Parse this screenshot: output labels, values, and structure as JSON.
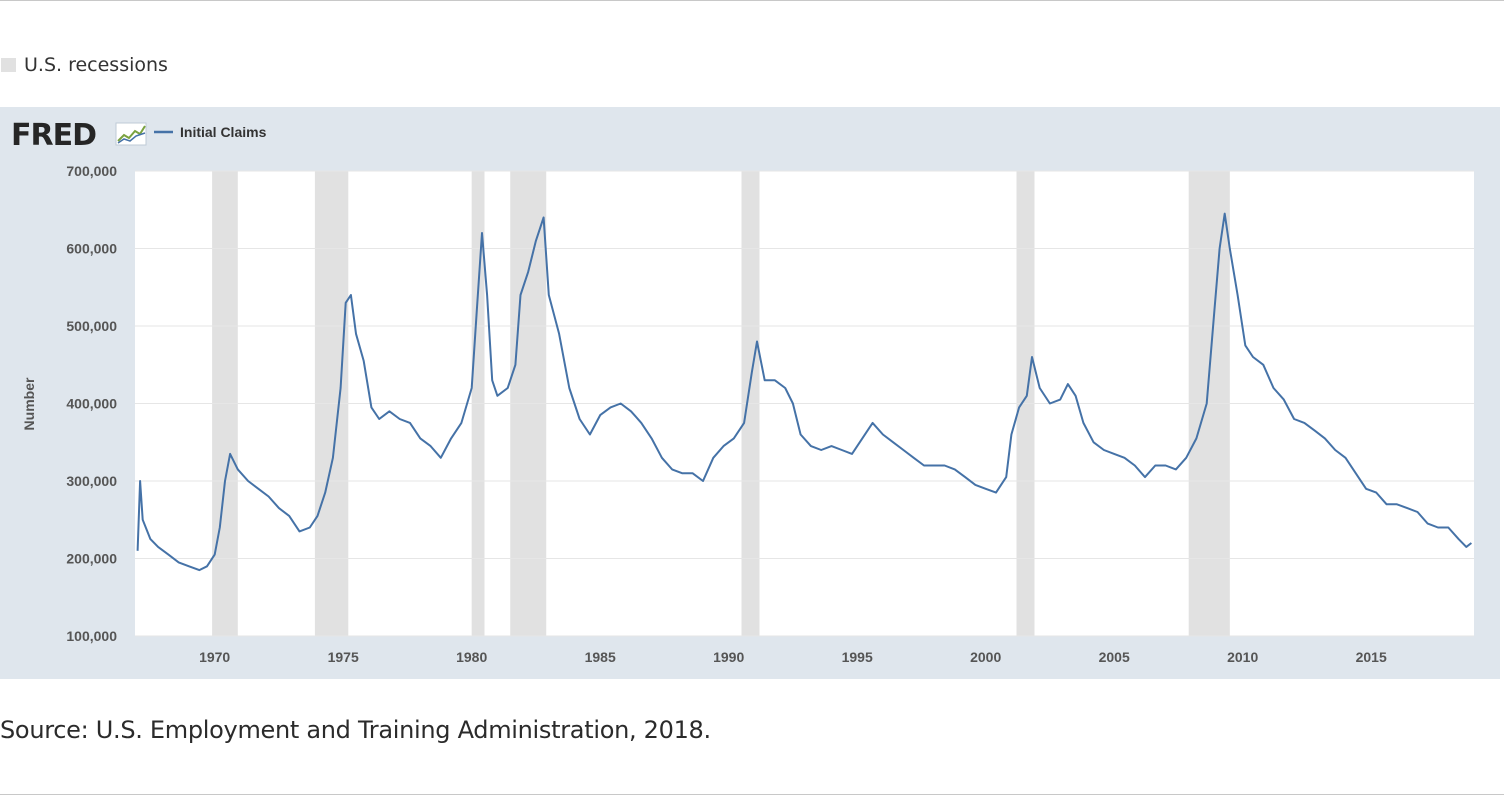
{
  "legend": {
    "label": "U.S. recessions"
  },
  "source_note": "Source: U.S. Employment and Training Administration, 2018.",
  "fred": {
    "logo_text": "FRED",
    "series_label": "Initial Claims"
  },
  "colors": {
    "panel": "#dfe6ed",
    "line": "#4572a7",
    "recession": "#e1e1e1",
    "grid": "#e6e6e6",
    "axis_text": "#555555"
  },
  "chart_data": {
    "type": "line",
    "title": "",
    "xlabel": "",
    "ylabel": "Number",
    "xlim": [
      1966.9,
      2019.0
    ],
    "ylim": [
      100000,
      700000
    ],
    "yticks": [
      100000,
      200000,
      300000,
      400000,
      500000,
      600000,
      700000
    ],
    "ytick_labels": [
      "100,000",
      "200,000",
      "300,000",
      "400,000",
      "500,000",
      "600,000",
      "700,000"
    ],
    "xticks": [
      1970,
      1975,
      1980,
      1985,
      1990,
      1995,
      2000,
      2005,
      2010,
      2015
    ],
    "xtick_labels": [
      "1970",
      "1975",
      "1980",
      "1985",
      "1990",
      "1995",
      "2000",
      "2005",
      "2010",
      "2015"
    ],
    "grid": true,
    "recessions": [
      [
        1969.9,
        1970.9
      ],
      [
        1973.9,
        1975.2
      ],
      [
        1980.0,
        1980.5
      ],
      [
        1981.5,
        1982.9
      ],
      [
        1990.5,
        1991.2
      ],
      [
        2001.2,
        2001.9
      ],
      [
        2007.9,
        2009.5
      ]
    ],
    "series": [
      {
        "name": "Initial Claims",
        "points": [
          [
            1967.0,
            210000
          ],
          [
            1967.1,
            300000
          ],
          [
            1967.2,
            250000
          ],
          [
            1967.5,
            225000
          ],
          [
            1967.8,
            215000
          ],
          [
            1968.2,
            205000
          ],
          [
            1968.6,
            195000
          ],
          [
            1969.0,
            190000
          ],
          [
            1969.4,
            185000
          ],
          [
            1969.7,
            190000
          ],
          [
            1970.0,
            205000
          ],
          [
            1970.2,
            240000
          ],
          [
            1970.4,
            300000
          ],
          [
            1970.6,
            335000
          ],
          [
            1970.9,
            315000
          ],
          [
            1971.3,
            300000
          ],
          [
            1971.7,
            290000
          ],
          [
            1972.1,
            280000
          ],
          [
            1972.5,
            265000
          ],
          [
            1972.9,
            255000
          ],
          [
            1973.3,
            235000
          ],
          [
            1973.7,
            240000
          ],
          [
            1974.0,
            255000
          ],
          [
            1974.3,
            285000
          ],
          [
            1974.6,
            330000
          ],
          [
            1974.9,
            420000
          ],
          [
            1975.1,
            530000
          ],
          [
            1975.3,
            540000
          ],
          [
            1975.5,
            490000
          ],
          [
            1975.8,
            455000
          ],
          [
            1976.1,
            395000
          ],
          [
            1976.4,
            380000
          ],
          [
            1976.8,
            390000
          ],
          [
            1977.2,
            380000
          ],
          [
            1977.6,
            375000
          ],
          [
            1978.0,
            355000
          ],
          [
            1978.4,
            345000
          ],
          [
            1978.8,
            330000
          ],
          [
            1979.2,
            355000
          ],
          [
            1979.6,
            375000
          ],
          [
            1980.0,
            420000
          ],
          [
            1980.2,
            520000
          ],
          [
            1980.4,
            620000
          ],
          [
            1980.6,
            540000
          ],
          [
            1980.8,
            430000
          ],
          [
            1981.0,
            410000
          ],
          [
            1981.4,
            420000
          ],
          [
            1981.7,
            450000
          ],
          [
            1981.9,
            540000
          ],
          [
            1982.2,
            570000
          ],
          [
            1982.5,
            610000
          ],
          [
            1982.8,
            640000
          ],
          [
            1983.0,
            540000
          ],
          [
            1983.4,
            490000
          ],
          [
            1983.8,
            420000
          ],
          [
            1984.2,
            380000
          ],
          [
            1984.6,
            360000
          ],
          [
            1985.0,
            385000
          ],
          [
            1985.4,
            395000
          ],
          [
            1985.8,
            400000
          ],
          [
            1986.2,
            390000
          ],
          [
            1986.6,
            375000
          ],
          [
            1987.0,
            355000
          ],
          [
            1987.4,
            330000
          ],
          [
            1987.8,
            315000
          ],
          [
            1988.2,
            310000
          ],
          [
            1988.6,
            310000
          ],
          [
            1989.0,
            300000
          ],
          [
            1989.4,
            330000
          ],
          [
            1989.8,
            345000
          ],
          [
            1990.2,
            355000
          ],
          [
            1990.6,
            375000
          ],
          [
            1990.9,
            440000
          ],
          [
            1991.1,
            480000
          ],
          [
            1991.4,
            430000
          ],
          [
            1991.8,
            430000
          ],
          [
            1992.2,
            420000
          ],
          [
            1992.5,
            400000
          ],
          [
            1992.8,
            360000
          ],
          [
            1993.2,
            345000
          ],
          [
            1993.6,
            340000
          ],
          [
            1994.0,
            345000
          ],
          [
            1994.4,
            340000
          ],
          [
            1994.8,
            335000
          ],
          [
            1995.2,
            355000
          ],
          [
            1995.6,
            375000
          ],
          [
            1996.0,
            360000
          ],
          [
            1996.4,
            350000
          ],
          [
            1996.8,
            340000
          ],
          [
            1997.2,
            330000
          ],
          [
            1997.6,
            320000
          ],
          [
            1998.0,
            320000
          ],
          [
            1998.4,
            320000
          ],
          [
            1998.8,
            315000
          ],
          [
            1999.2,
            305000
          ],
          [
            1999.6,
            295000
          ],
          [
            2000.0,
            290000
          ],
          [
            2000.4,
            285000
          ],
          [
            2000.8,
            305000
          ],
          [
            2001.0,
            360000
          ],
          [
            2001.3,
            395000
          ],
          [
            2001.6,
            410000
          ],
          [
            2001.8,
            460000
          ],
          [
            2002.1,
            420000
          ],
          [
            2002.5,
            400000
          ],
          [
            2002.9,
            405000
          ],
          [
            2003.2,
            425000
          ],
          [
            2003.5,
            410000
          ],
          [
            2003.8,
            375000
          ],
          [
            2004.2,
            350000
          ],
          [
            2004.6,
            340000
          ],
          [
            2005.0,
            335000
          ],
          [
            2005.4,
            330000
          ],
          [
            2005.8,
            320000
          ],
          [
            2006.2,
            305000
          ],
          [
            2006.6,
            320000
          ],
          [
            2007.0,
            320000
          ],
          [
            2007.4,
            315000
          ],
          [
            2007.8,
            330000
          ],
          [
            2008.2,
            355000
          ],
          [
            2008.6,
            400000
          ],
          [
            2008.9,
            520000
          ],
          [
            2009.1,
            600000
          ],
          [
            2009.3,
            645000
          ],
          [
            2009.5,
            600000
          ],
          [
            2009.8,
            540000
          ],
          [
            2010.1,
            475000
          ],
          [
            2010.4,
            460000
          ],
          [
            2010.8,
            450000
          ],
          [
            2011.2,
            420000
          ],
          [
            2011.6,
            405000
          ],
          [
            2012.0,
            380000
          ],
          [
            2012.4,
            375000
          ],
          [
            2012.8,
            365000
          ],
          [
            2013.2,
            355000
          ],
          [
            2013.6,
            340000
          ],
          [
            2014.0,
            330000
          ],
          [
            2014.4,
            310000
          ],
          [
            2014.8,
            290000
          ],
          [
            2015.2,
            285000
          ],
          [
            2015.6,
            270000
          ],
          [
            2016.0,
            270000
          ],
          [
            2016.4,
            265000
          ],
          [
            2016.8,
            260000
          ],
          [
            2017.2,
            245000
          ],
          [
            2017.6,
            240000
          ],
          [
            2018.0,
            240000
          ],
          [
            2018.4,
            225000
          ],
          [
            2018.7,
            215000
          ],
          [
            2018.9,
            220000
          ]
        ]
      }
    ]
  }
}
